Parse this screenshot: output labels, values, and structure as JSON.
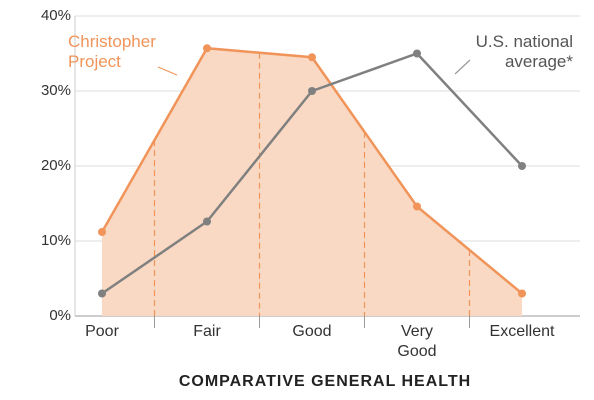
{
  "chart_data": {
    "type": "line",
    "title": "COMPARATIVE GENERAL HEALTH",
    "categories": [
      "Poor",
      "Fair",
      "Good",
      "Very Good",
      "Excellent"
    ],
    "series": [
      {
        "name": "Christopher Project",
        "color": "#f0945a",
        "fill": "#f9d9c3",
        "values": [
          11.2,
          35.7,
          34.5,
          14.6,
          3.0
        ]
      },
      {
        "name": "U.S. national average*",
        "color": "#808080",
        "values": [
          3.0,
          12.6,
          30.0,
          35.0,
          20.0
        ]
      }
    ],
    "ylim": [
      0,
      40
    ],
    "yticks": [
      {
        "value": 0,
        "label": "0%"
      },
      {
        "value": 10,
        "label": "10%"
      },
      {
        "value": 20,
        "label": "20%"
      },
      {
        "value": 30,
        "label": "30%"
      },
      {
        "value": 40,
        "label": "40%"
      }
    ],
    "grid": true
  }
}
